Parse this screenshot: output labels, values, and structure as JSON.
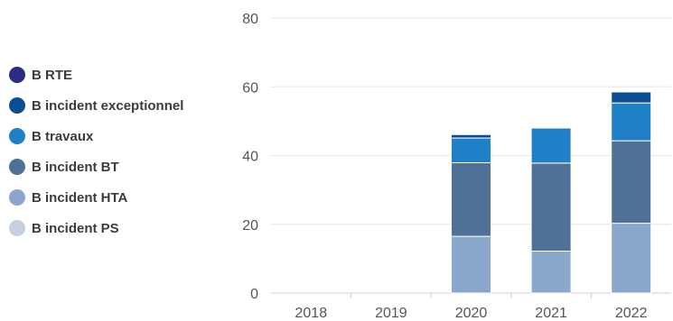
{
  "chart_data": {
    "type": "bar",
    "stacked": true,
    "categories": [
      "2018",
      "2019",
      "2020",
      "2021",
      "2022"
    ],
    "ylim": [
      0,
      80
    ],
    "yticks": [
      0,
      20,
      40,
      60,
      80
    ],
    "grid": true,
    "legend_position": "left",
    "series": [
      {
        "name": "B incident PS",
        "color": "#c5cfe0",
        "values": [
          0,
          0,
          0,
          0,
          0
        ]
      },
      {
        "name": "B incident HTA",
        "color": "#8ca7cc",
        "values": [
          0,
          0,
          16.5,
          12.2,
          20.3
        ]
      },
      {
        "name": "B incident BT",
        "color": "#4e7195",
        "values": [
          0,
          0,
          21.4,
          25.6,
          24.0
        ]
      },
      {
        "name": "B travaux",
        "color": "#1f80c8",
        "values": [
          0,
          0,
          7.2,
          10.2,
          11.0
        ]
      },
      {
        "name": "B incident exceptionnel",
        "color": "#0c4d96",
        "values": [
          0,
          0,
          1.0,
          0,
          3.2
        ]
      },
      {
        "name": "B RTE",
        "color": "#2b2b80",
        "values": [
          0,
          0,
          0,
          0,
          0
        ]
      }
    ]
  },
  "legend_order": [
    "B RTE",
    "B incident exceptionnel",
    "B travaux",
    "B incident BT",
    "B incident HTA",
    "B incident PS"
  ]
}
